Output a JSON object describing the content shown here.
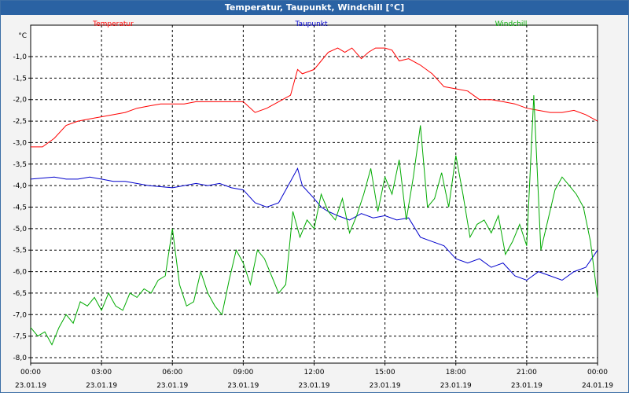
{
  "window": {
    "title": "Temperatur, Taupunkt, Windchill [°C]"
  },
  "chart_data": {
    "type": "line",
    "title": "Temperatur, Taupunkt, Windchill [°C]",
    "ylabel": "°C",
    "ylim": [
      -8.0,
      -0.5
    ],
    "yticks": [
      -1.0,
      -1.5,
      -2.0,
      -2.5,
      -3.0,
      -3.5,
      -4.0,
      -4.5,
      -5.0,
      -5.5,
      -6.0,
      -6.5,
      -7.0,
      -7.5,
      -8.0
    ],
    "ytick_labels": [
      "-1,0",
      "-1,5",
      "-2,0",
      "-2,5",
      "-3,0",
      "-3,5",
      "-4,0",
      "-4,5",
      "-5,0",
      "-5,5",
      "-6,0",
      "-6,5",
      "-7,0",
      "-7,5",
      "-8,0"
    ],
    "xlim": [
      0,
      24
    ],
    "xticks": [
      0,
      3,
      6,
      9,
      12,
      15,
      18,
      21,
      24
    ],
    "xtick_times": [
      "00:00",
      "03:00",
      "06:00",
      "09:00",
      "12:00",
      "15:00",
      "18:00",
      "21:00",
      "00:00"
    ],
    "xtick_dates": [
      "23.01.19",
      "23.01.19",
      "23.01.19",
      "23.01.19",
      "23.01.19",
      "23.01.19",
      "23.01.19",
      "23.01.19",
      "24.01.19"
    ],
    "grid": true,
    "legend": [
      "Temperatur",
      "Taupunkt",
      "Windchill"
    ],
    "series": [
      {
        "name": "Temperatur",
        "color": "#ff0000",
        "x": [
          0,
          0.5,
          1,
          1.5,
          2,
          2.5,
          3,
          3.5,
          4,
          4.5,
          5,
          5.5,
          6,
          6.5,
          7,
          7.5,
          8,
          8.5,
          9,
          9.5,
          10,
          10.5,
          11,
          11.3,
          11.5,
          12,
          12.3,
          12.6,
          13,
          13.3,
          13.6,
          14,
          14.3,
          14.6,
          15,
          15.3,
          15.6,
          16,
          16.5,
          17,
          17.5,
          18,
          18.5,
          19,
          19.5,
          20,
          20.5,
          21,
          21.5,
          22,
          22.5,
          23,
          23.5,
          24
        ],
        "y": [
          -3.1,
          -3.1,
          -2.9,
          -2.6,
          -2.5,
          -2.45,
          -2.4,
          -2.35,
          -2.3,
          -2.2,
          -2.15,
          -2.1,
          -2.1,
          -2.1,
          -2.05,
          -2.05,
          -2.05,
          -2.05,
          -2.05,
          -2.3,
          -2.2,
          -2.05,
          -1.9,
          -1.3,
          -1.4,
          -1.3,
          -1.1,
          -0.9,
          -0.8,
          -0.9,
          -0.8,
          -1.05,
          -0.9,
          -0.8,
          -0.8,
          -0.85,
          -1.1,
          -1.05,
          -1.2,
          -1.4,
          -1.7,
          -1.75,
          -1.8,
          -2.0,
          -2.0,
          -2.05,
          -2.1,
          -2.2,
          -2.25,
          -2.3,
          -2.3,
          -2.25,
          -2.35,
          -2.5
        ]
      },
      {
        "name": "Taupunkt",
        "color": "#0000cc",
        "x": [
          0,
          1,
          1.5,
          2,
          2.5,
          3,
          3.5,
          4,
          5,
          6,
          7,
          7.5,
          8,
          8.5,
          9,
          9.5,
          10,
          10.5,
          11,
          11.3,
          11.5,
          12,
          12.3,
          12.6,
          13,
          13.5,
          14,
          14.5,
          15,
          15.5,
          16,
          16.5,
          17,
          17.5,
          18,
          18.5,
          19,
          19.5,
          20,
          20.5,
          21,
          21.5,
          22,
          22.5,
          23,
          23.5,
          24
        ],
        "y": [
          -3.85,
          -3.8,
          -3.85,
          -3.85,
          -3.8,
          -3.85,
          -3.9,
          -3.9,
          -4.0,
          -4.05,
          -3.95,
          -4.0,
          -3.95,
          -4.05,
          -4.1,
          -4.4,
          -4.5,
          -4.4,
          -3.9,
          -3.6,
          -4.0,
          -4.3,
          -4.5,
          -4.6,
          -4.7,
          -4.8,
          -4.65,
          -4.75,
          -4.7,
          -4.8,
          -4.75,
          -5.2,
          -5.3,
          -5.4,
          -5.7,
          -5.8,
          -5.7,
          -5.9,
          -5.8,
          -6.1,
          -6.2,
          -6.0,
          -6.1,
          -6.2,
          -6.0,
          -5.9,
          -5.5
        ]
      },
      {
        "name": "Windchill",
        "color": "#00aa00",
        "x": [
          0,
          0.3,
          0.6,
          0.9,
          1.2,
          1.5,
          1.8,
          2.1,
          2.4,
          2.7,
          3.0,
          3.3,
          3.6,
          3.9,
          4.2,
          4.5,
          4.8,
          5.1,
          5.4,
          5.7,
          6.0,
          6.3,
          6.6,
          6.9,
          7.2,
          7.5,
          7.8,
          8.1,
          8.4,
          8.7,
          9.0,
          9.3,
          9.6,
          9.9,
          10.2,
          10.5,
          10.8,
          11.1,
          11.4,
          11.7,
          12.0,
          12.3,
          12.6,
          12.9,
          13.2,
          13.5,
          13.8,
          14.1,
          14.4,
          14.7,
          15.0,
          15.3,
          15.6,
          15.9,
          16.2,
          16.5,
          16.8,
          17.1,
          17.4,
          17.7,
          18.0,
          18.3,
          18.6,
          18.9,
          19.2,
          19.5,
          19.8,
          20.1,
          20.4,
          20.7,
          21.0,
          21.3,
          21.6,
          21.9,
          22.2,
          22.5,
          22.8,
          23.1,
          23.4,
          23.7,
          24.0
        ],
        "y": [
          -7.3,
          -7.5,
          -7.4,
          -7.7,
          -7.3,
          -7.0,
          -7.2,
          -6.7,
          -6.8,
          -6.6,
          -6.9,
          -6.5,
          -6.8,
          -6.9,
          -6.5,
          -6.6,
          -6.4,
          -6.5,
          -6.2,
          -6.1,
          -5.0,
          -6.3,
          -6.8,
          -6.7,
          -6.0,
          -6.5,
          -6.8,
          -7.0,
          -6.2,
          -5.5,
          -5.8,
          -6.3,
          -5.5,
          -5.7,
          -6.1,
          -6.5,
          -6.3,
          -4.6,
          -5.2,
          -4.8,
          -5.0,
          -4.2,
          -4.6,
          -4.8,
          -4.3,
          -5.1,
          -4.7,
          -4.2,
          -3.6,
          -4.6,
          -3.8,
          -4.2,
          -3.4,
          -4.8,
          -3.8,
          -2.6,
          -4.5,
          -4.3,
          -3.7,
          -4.5,
          -3.3,
          -4.2,
          -5.2,
          -4.9,
          -4.8,
          -5.1,
          -4.7,
          -5.6,
          -5.3,
          -4.9,
          -5.4,
          -1.9,
          -5.5,
          -4.8,
          -4.1,
          -3.8,
          -4.0,
          -4.2,
          -4.5,
          -5.3,
          -6.6
        ]
      }
    ]
  }
}
